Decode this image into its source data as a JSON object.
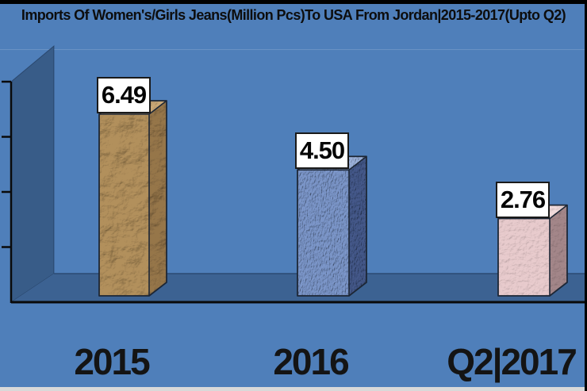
{
  "title": "Imports Of Women's/Girls Jeans(Million Pcs)To USA From Jordan|2015-2017(Upto Q2)",
  "colors": {
    "background": "#4f7fba",
    "wall": "#385c88",
    "floor": "#3c6292",
    "floor_back_edge": "#2b4a73",
    "axis": "#0a0a0a",
    "bar_outline": "#1d2736",
    "value_box_bg": "#ffffff",
    "value_box_border": "#1a1a1a",
    "title_text": "#0d0d0d",
    "category_text": "#141414",
    "top_border": "#000000",
    "bottom_strip": "#d9d9d9"
  },
  "chart_data": {
    "type": "bar",
    "projection": "3d",
    "title": "Imports Of Women's/Girls Jeans(Million Pcs)To USA From Jordan|2015-2017(Upto Q2)",
    "categories": [
      "2015",
      "2016",
      "Q2|2017"
    ],
    "values": [
      6.49,
      4.5,
      2.76
    ],
    "value_labels": [
      "6.49",
      "4.50",
      "2.76"
    ],
    "ylabel": "",
    "xlabel": "",
    "ylim": [
      0,
      8
    ],
    "ytick_step": 2,
    "y_axis_labels_visible": false,
    "gridlines": false,
    "legend": false,
    "bar_styles": [
      {
        "name": "crumpled-tan",
        "front": "#b2905c",
        "side": "#96764a",
        "top": "#caa876"
      },
      {
        "name": "denim-blue",
        "front": "#7b96c9",
        "side": "#44598a",
        "top": "#9db3dc"
      },
      {
        "name": "paper-pink",
        "front": "#e8cbcd",
        "side": "#a38689",
        "top": "#f0dadb"
      }
    ]
  }
}
